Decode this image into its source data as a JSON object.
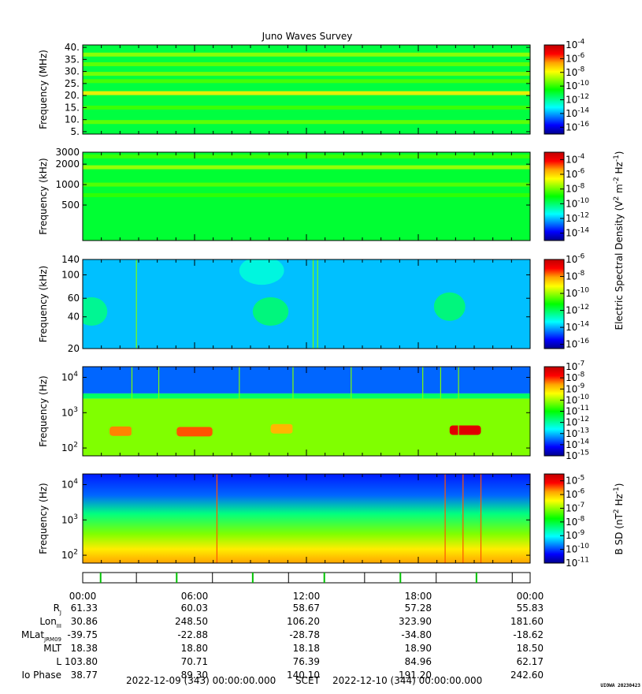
{
  "title": "Juno Waves Survey",
  "colors": {
    "colormap": [
      "#00008b",
      "#0000ff",
      "#0080ff",
      "#00ffff",
      "#00ff80",
      "#00ff00",
      "#80ff00",
      "#ffff00",
      "#ffa500",
      "#ff0000",
      "#c00000"
    ]
  },
  "chart_data": [
    {
      "type": "heatmap",
      "name": "panel-mhz",
      "ylabel": "Frequency (MHz)",
      "yscale": "linear",
      "ylim": [
        4,
        41
      ],
      "yticks": [
        "40.",
        "35.",
        "30.",
        "25.",
        "20.",
        "15.",
        "10.",
        "5."
      ],
      "ytick_values": [
        40,
        35,
        30,
        25,
        20,
        15,
        10,
        5
      ],
      "colorbar": {
        "ticks": [
          "10-4",
          "10-6",
          "10-8",
          "10-10",
          "10-12",
          "10-14",
          "10-16"
        ],
        "exponents": [
          -4,
          -6,
          -8,
          -10,
          -12,
          -14,
          -16
        ],
        "range": [
          -17,
          -4
        ]
      },
      "bands": [
        {
          "freq": 37,
          "level": 0.62
        },
        {
          "freq": 33,
          "level": 0.58
        },
        {
          "freq": 29,
          "level": 0.6
        },
        {
          "freq": 26,
          "level": 0.56
        },
        {
          "freq": 21,
          "level": 0.72
        },
        {
          "freq": 15,
          "level": 0.55
        },
        {
          "freq": 9,
          "level": 0.58
        }
      ],
      "background_level": 0.45
    },
    {
      "type": "heatmap",
      "name": "panel-khz-high",
      "ylabel": "Frequency (kHz)",
      "yscale": "log",
      "ylim": [
        150,
        3000
      ],
      "yticks": [
        "3000",
        "2000",
        "1000",
        "500"
      ],
      "ytick_values": [
        3000,
        2000,
        1000,
        500
      ],
      "colorbar": {
        "ticks": [
          "10-4",
          "10-6",
          "10-8",
          "10-10",
          "10-12",
          "10-14"
        ],
        "exponents": [
          -4,
          -6,
          -8,
          -10,
          -12,
          -14
        ],
        "range": [
          -15,
          -3
        ]
      },
      "bands": [
        {
          "freq": 2600,
          "level": 0.55
        },
        {
          "freq": 1800,
          "level": 0.63
        },
        {
          "freq": 1000,
          "level": 0.57
        },
        {
          "freq": 700,
          "level": 0.54
        }
      ],
      "background_level": 0.46
    },
    {
      "type": "heatmap",
      "name": "panel-khz-low",
      "ylabel": "Frequency (kHz)",
      "yscale": "log",
      "ylim": [
        20,
        140
      ],
      "yticks": [
        "140",
        "100",
        "60",
        "40",
        "20"
      ],
      "ytick_values": [
        140,
        100,
        60,
        40,
        20
      ],
      "colorbar": {
        "ticks": [
          "10-6",
          "10-8",
          "10-10",
          "10-12",
          "10-14",
          "10-16"
        ],
        "exponents": [
          -6,
          -8,
          -10,
          -12,
          -14,
          -16
        ],
        "range": [
          -16.5,
          -6
        ]
      },
      "background_level": 0.25,
      "blobs": [
        {
          "x": 0.02,
          "y": 45,
          "rx": 0.035,
          "level": 0.4
        },
        {
          "x": 0.42,
          "y": 45,
          "rx": 0.04,
          "level": 0.42
        },
        {
          "x": 0.82,
          "y": 50,
          "rx": 0.035,
          "level": 0.42
        },
        {
          "x": 0.4,
          "y": 110,
          "rx": 0.05,
          "level": 0.33
        }
      ],
      "spikes": [
        0.12,
        0.515,
        0.525
      ]
    },
    {
      "type": "heatmap",
      "name": "panel-hz",
      "ylabel": "Frequency (Hz)",
      "yscale": "log",
      "ylim": [
        60,
        20000
      ],
      "yticks": [
        "10^4",
        "10^3",
        "10^2"
      ],
      "ytick_values": [
        10000,
        1000,
        100
      ],
      "colorbar": {
        "ticks": [
          "10-7",
          "10-8",
          "10-9",
          "10-10",
          "10-11",
          "10-12",
          "10-13",
          "10-14",
          "10-15"
        ],
        "exponents": [
          -7,
          -8,
          -9,
          -10,
          -11,
          -12,
          -13,
          -14,
          -15
        ],
        "range": [
          -15,
          -7
        ]
      },
      "layers": [
        {
          "from": 3500,
          "to": 20000,
          "level": 0.18
        },
        {
          "from": 2500,
          "to": 3500,
          "level": 0.42
        },
        {
          "from": 60,
          "to": 2500,
          "level": 0.6
        }
      ],
      "bursts": [
        {
          "x": 0.06,
          "width": 0.05,
          "freq": 300,
          "level": 0.82
        },
        {
          "x": 0.21,
          "width": 0.08,
          "freq": 290,
          "level": 0.85
        },
        {
          "x": 0.42,
          "width": 0.05,
          "freq": 350,
          "level": 0.78
        },
        {
          "x": 0.82,
          "width": 0.07,
          "freq": 320,
          "level": 0.95
        }
      ],
      "spikes": [
        0.11,
        0.17,
        0.35,
        0.47,
        0.6,
        0.76,
        0.8,
        0.84
      ]
    },
    {
      "type": "heatmap",
      "name": "panel-bsd",
      "ylabel": "Frequency (Hz)",
      "yscale": "log",
      "ylim": [
        60,
        20000
      ],
      "yticks": [
        "10^4",
        "10^3",
        "10^2"
      ],
      "ytick_values": [
        10000,
        1000,
        100
      ],
      "colorbar": {
        "ticks": [
          "10-5",
          "10-6",
          "10-7",
          "10-8",
          "10-9",
          "10-10",
          "10-11"
        ],
        "exponents": [
          -5,
          -6,
          -7,
          -8,
          -9,
          -10,
          -11
        ],
        "range": [
          -11,
          -4.5
        ]
      },
      "gradient": [
        {
          "freq": 20000,
          "level": 0.12
        },
        {
          "freq": 5000,
          "level": 0.18
        },
        {
          "freq": 1500,
          "level": 0.4
        },
        {
          "freq": 400,
          "level": 0.6
        },
        {
          "freq": 150,
          "level": 0.72
        },
        {
          "freq": 60,
          "level": 0.8
        }
      ],
      "spikes": [
        0.3,
        0.81,
        0.85,
        0.89
      ]
    }
  ],
  "colorbar_labels": {
    "electric": "Electric Spectral Density (V^2 m^-2 Hz^-1)",
    "magnetic": "B SD (nT^2 Hz^-1)"
  },
  "time_axis": {
    "ticks": [
      "00:00",
      "06:00",
      "12:00",
      "18:00",
      "00:00"
    ],
    "tick_fractions": [
      0,
      0.25,
      0.5,
      0.75,
      1.0
    ],
    "event_marks": [
      0.04,
      0.12,
      0.21,
      0.29,
      0.38,
      0.46,
      0.54,
      0.63,
      0.71,
      0.79,
      0.88,
      0.96
    ]
  },
  "ephemeris": {
    "labels": [
      "Rj",
      "LonIII",
      "MLatJRM09",
      "MLT",
      "L",
      "Io Phase"
    ],
    "rows": [
      [
        "61.33",
        "60.03",
        "58.67",
        "57.28",
        "55.83"
      ],
      [
        "30.86",
        "248.50",
        "106.20",
        "323.90",
        "181.60"
      ],
      [
        "-39.75",
        "-22.88",
        "-28.78",
        "-34.80",
        "-18.62"
      ],
      [
        "18.38",
        "18.80",
        "18.18",
        "18.90",
        "18.50"
      ],
      [
        "103.80",
        "70.71",
        "76.39",
        "84.96",
        "62.17"
      ],
      [
        "38.77",
        "89.30",
        "140.10",
        "191.20",
        "242.60"
      ]
    ]
  },
  "footer": {
    "start": "2022-12-09 (343) 00:00:00.000",
    "frame": "SCET",
    "end": "2022-12-10 (344) 00:00:00.000",
    "stamp": "UIOWA 20230423"
  }
}
